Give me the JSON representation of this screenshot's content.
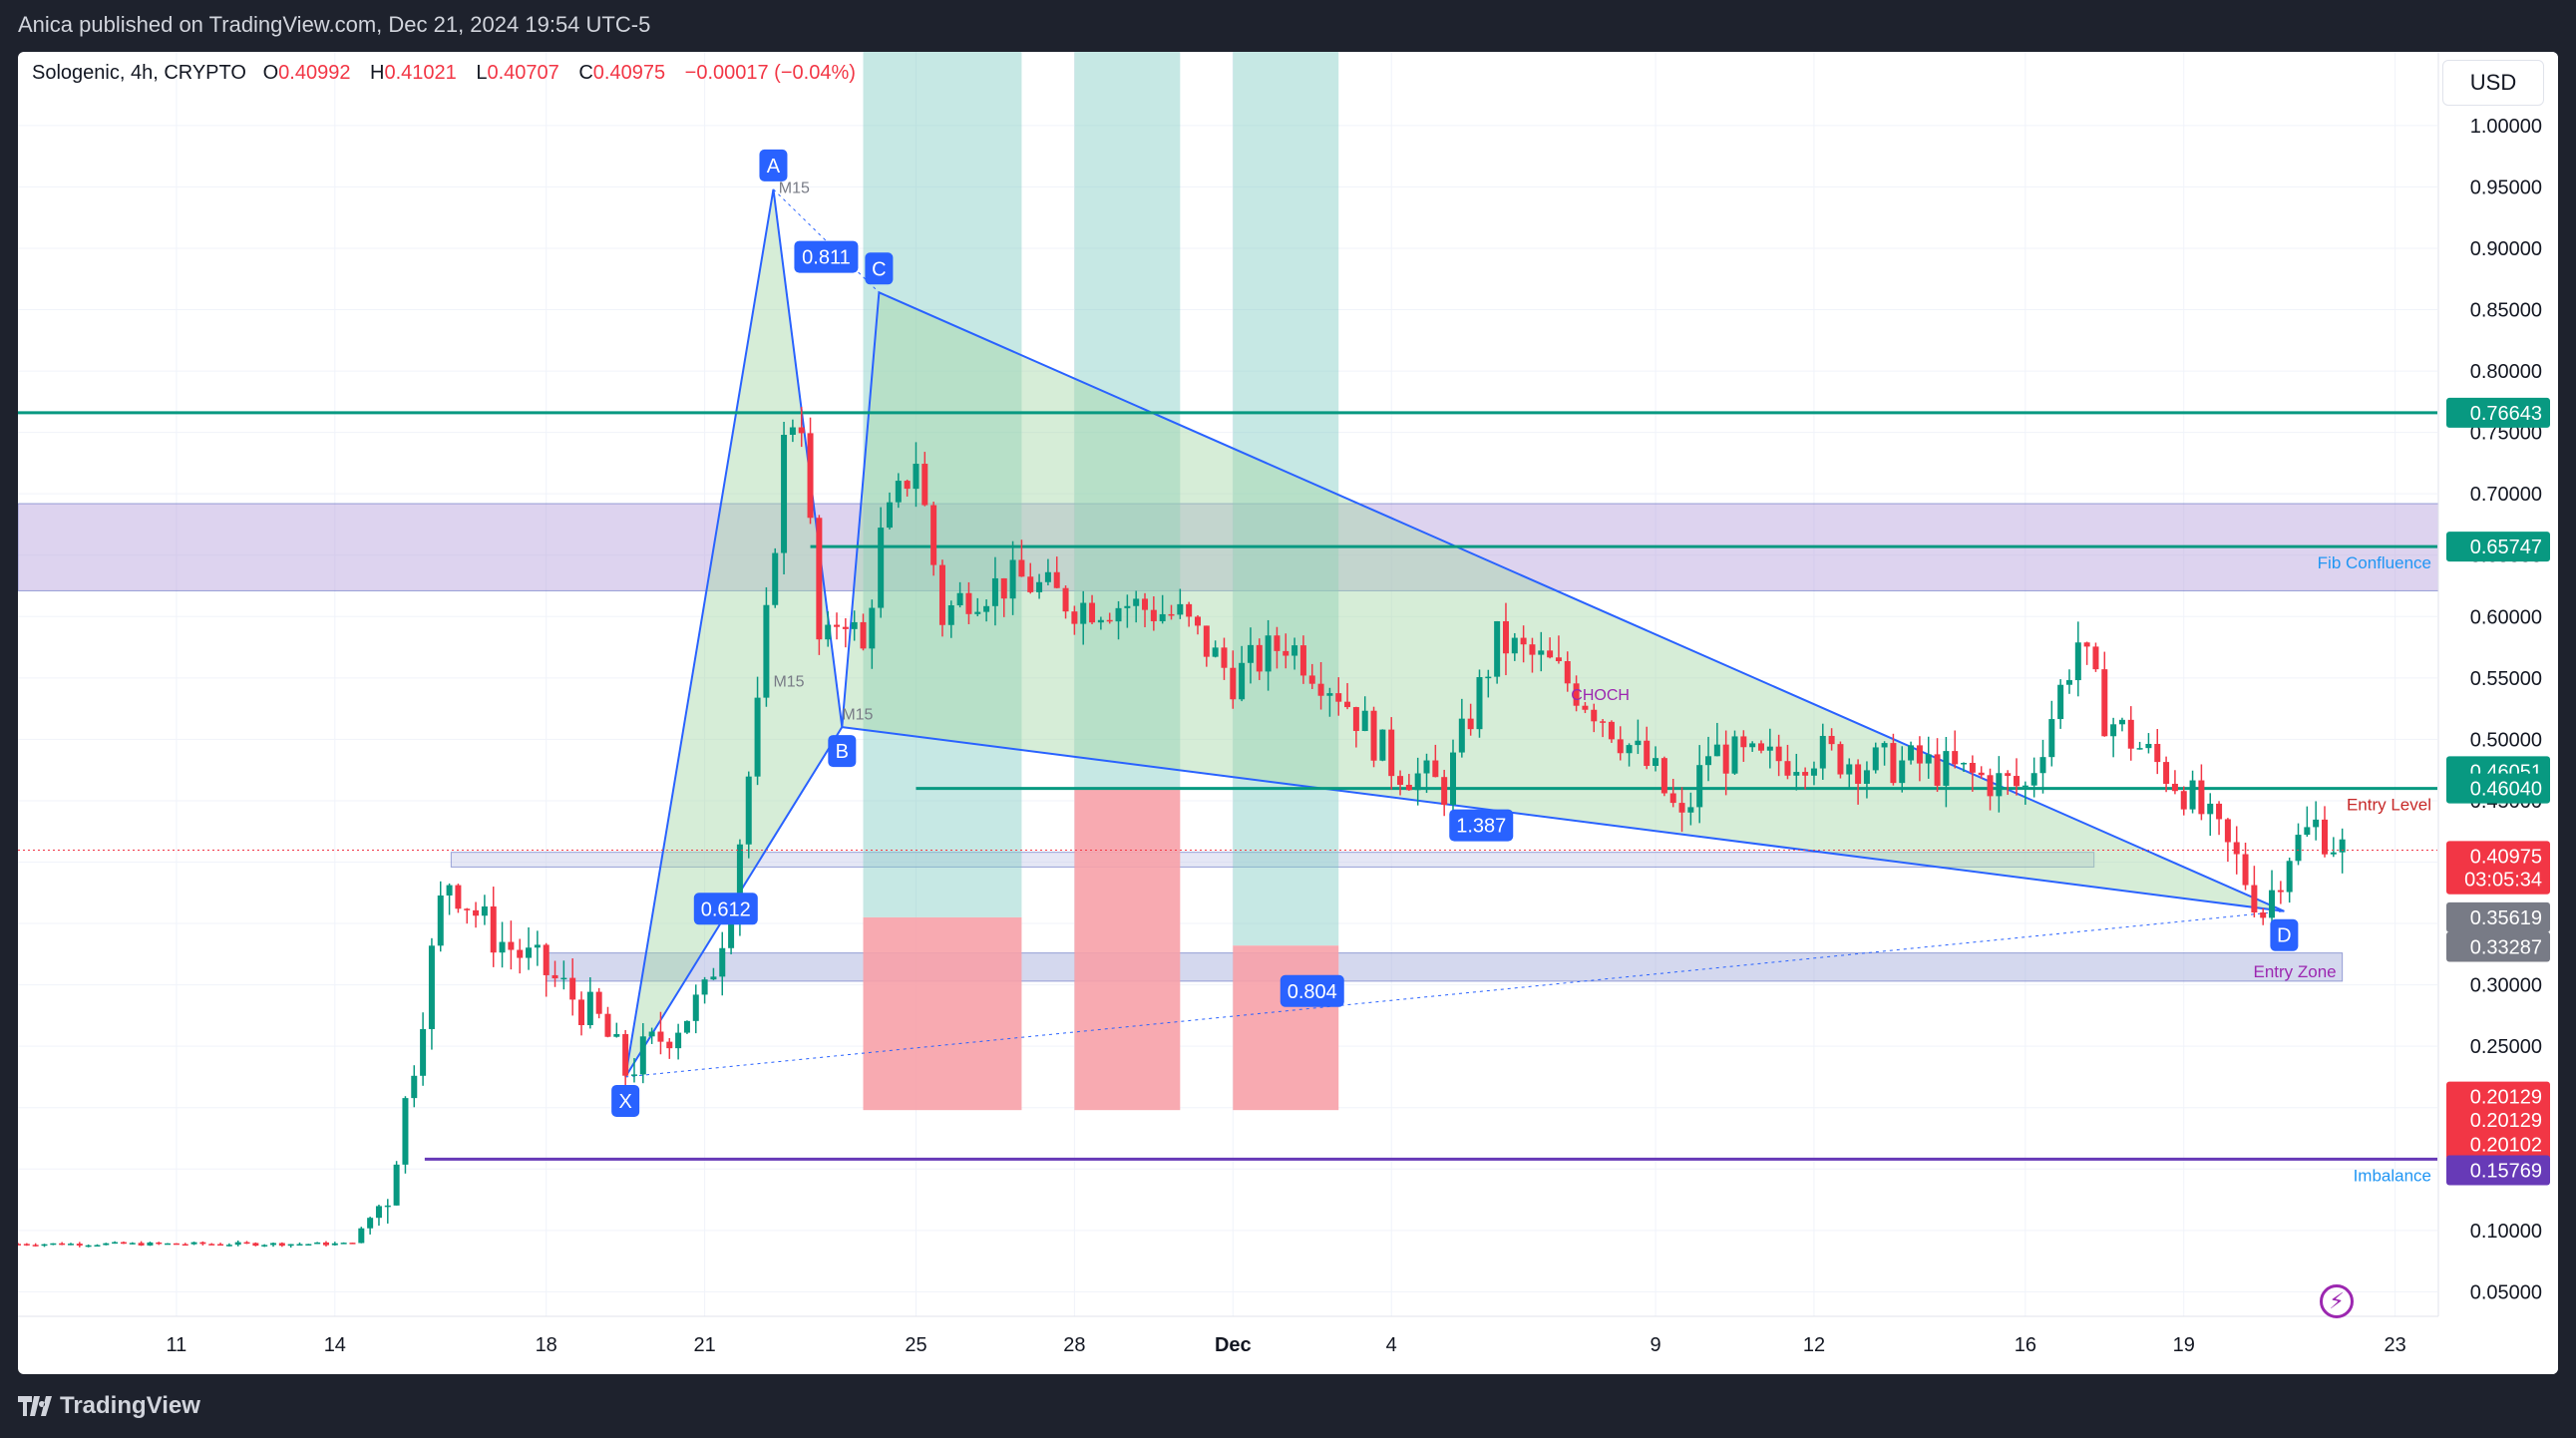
{
  "header": {
    "published": "Anica published on TradingView.com, Dec 21, 2024 19:54 UTC-5"
  },
  "legend": {
    "symbol": "Sologenic, 4h, CRYPTO",
    "open_label": "O",
    "open": "0.40992",
    "high_label": "H",
    "high": "0.41021",
    "low_label": "L",
    "low": "0.40707",
    "close_label": "C",
    "close": "0.40975",
    "change": "−0.00017 (−0.04%)"
  },
  "currency": "USD",
  "footer": {
    "brand": "TradingView"
  },
  "colors": {
    "bull": "#089981",
    "bear": "#f23645",
    "pattern_line": "#2962ff",
    "pattern_fill": "#a5d6a7",
    "level": "#089981",
    "zone": "#b39ddb",
    "imbalance": "#673ab7",
    "target": "#80cbc4",
    "stop": "#f7a1a8"
  },
  "chart_data": {
    "type": "candlestick",
    "title": "Sologenic, 4h, CRYPTO",
    "xlabel": "",
    "ylabel": "USD",
    "ylim": [
      0.03,
      1.06
    ],
    "y_ticks": [
      "1.00000",
      "0.95000",
      "0.90000",
      "0.85000",
      "0.80000",
      "0.75000",
      "0.70000",
      "0.65000",
      "0.60000",
      "0.55000",
      "0.50000",
      "0.45000",
      "0.40000",
      "0.35000",
      "0.30000",
      "0.25000",
      "0.20000",
      "0.15000",
      "0.10000",
      "0.05000"
    ],
    "x_ticks": [
      {
        "label": "11",
        "day": 11
      },
      {
        "label": "14",
        "day": 14
      },
      {
        "label": "18",
        "day": 18
      },
      {
        "label": "21",
        "day": 21
      },
      {
        "label": "25",
        "day": 25
      },
      {
        "label": "28",
        "day": 28
      },
      {
        "label": "Dec",
        "day": 31
      },
      {
        "label": "4",
        "day": 34
      },
      {
        "label": "9",
        "day": 39
      },
      {
        "label": "12",
        "day": 42
      },
      {
        "label": "16",
        "day": 46
      },
      {
        "label": "19",
        "day": 49
      },
      {
        "label": "23",
        "day": 53
      }
    ],
    "price_path": [
      [
        8,
        0.089
      ],
      [
        14.3,
        0.089
      ],
      [
        15,
        0.13
      ],
      [
        15.5,
        0.24
      ],
      [
        16.1,
        0.39
      ],
      [
        17,
        0.34
      ],
      [
        18,
        0.31
      ],
      [
        19,
        0.27
      ],
      [
        19.5,
        0.23
      ],
      [
        20,
        0.25
      ],
      [
        21,
        0.29
      ],
      [
        21.5,
        0.37
      ],
      [
        22,
        0.52
      ],
      [
        22.5,
        0.74
      ],
      [
        22.8,
        0.78
      ],
      [
        23.2,
        0.56
      ],
      [
        23.6,
        0.61
      ],
      [
        24,
        0.57
      ],
      [
        24.3,
        0.66
      ],
      [
        25,
        0.73
      ],
      [
        25.5,
        0.6
      ],
      [
        26,
        0.62
      ],
      [
        27,
        0.63
      ],
      [
        28,
        0.61
      ],
      [
        29,
        0.61
      ],
      [
        30,
        0.6
      ],
      [
        31,
        0.55
      ],
      [
        32,
        0.58
      ],
      [
        33,
        0.54
      ],
      [
        34,
        0.48
      ],
      [
        35,
        0.46
      ],
      [
        36,
        0.58
      ],
      [
        37,
        0.56
      ],
      [
        38,
        0.52
      ],
      [
        39,
        0.47
      ],
      [
        39.5,
        0.43
      ],
      [
        40,
        0.49
      ],
      [
        41,
        0.48
      ],
      [
        42,
        0.49
      ],
      [
        43,
        0.48
      ],
      [
        44,
        0.48
      ],
      [
        45,
        0.47
      ],
      [
        46,
        0.46
      ],
      [
        46.5,
        0.52
      ],
      [
        47,
        0.58
      ],
      [
        47.5,
        0.52
      ],
      [
        48,
        0.5
      ],
      [
        49,
        0.46
      ],
      [
        49.5,
        0.43
      ],
      [
        50,
        0.4
      ],
      [
        50.5,
        0.36
      ],
      [
        51,
        0.41
      ],
      [
        51.5,
        0.43
      ],
      [
        52,
        0.41
      ]
    ],
    "harmonic_pattern": {
      "points": [
        {
          "label": "X",
          "day": 19.5,
          "price": 0.225
        },
        {
          "label": "A",
          "day": 22.3,
          "price": 0.948
        },
        {
          "label": "B",
          "day": 23.6,
          "price": 0.51
        },
        {
          "label": "C",
          "day": 24.3,
          "price": 0.864
        },
        {
          "label": "D",
          "day": 50.9,
          "price": 0.36
        }
      ],
      "ratios": [
        {
          "label": "0.811",
          "day": 23.3,
          "price": 0.893
        },
        {
          "label": "1.387",
          "day": 35.7,
          "price": 0.43
        },
        {
          "label": "0.804",
          "day": 32.5,
          "price": 0.295
        },
        {
          "label": "0.612",
          "day": 21.4,
          "price": 0.362
        }
      ],
      "markers": [
        {
          "label": "M15",
          "day": 22.4,
          "price": 0.945
        },
        {
          "label": "M15",
          "day": 22.3,
          "price": 0.543
        },
        {
          "label": "M15",
          "day": 23.6,
          "price": 0.516
        },
        {
          "label": "CHOCH",
          "day": 37.4,
          "price": 0.532
        }
      ]
    },
    "horizontal_levels": [
      {
        "label": "",
        "price": 0.766,
        "axis_label": "0.76643",
        "color": "#089981",
        "x_from": 8
      },
      {
        "label": "Fib Confluence",
        "price": 0.657,
        "axis_label": "0.65747",
        "color": "#089981",
        "x_from": 23
      },
      {
        "label": "Entry Level",
        "price": 0.46,
        "axis_label": "0.46040",
        "color": "#089981",
        "x_from": 25
      },
      {
        "label": "Imbalance",
        "price": 0.158,
        "axis_label": "0.15769",
        "color": "#673ab7",
        "x_from": 15.7
      }
    ],
    "axis_labels": [
      {
        "value": "0.76643",
        "price": 0.766,
        "color": "#089981"
      },
      {
        "value": "0.65747",
        "price": 0.657,
        "color": "#089981"
      },
      {
        "value": "0.46051",
        "price": 0.474,
        "color": "#089981"
      },
      {
        "value": "0.46040",
        "price": 0.46,
        "color": "#089981"
      },
      {
        "value": "0.40975",
        "price": 0.405,
        "color": "#f23645"
      },
      {
        "value": "03:05:34",
        "price": 0.386,
        "color": "#f23645"
      },
      {
        "value": "0.35619",
        "price": 0.355,
        "color": "#787b86"
      },
      {
        "value": "0.33287",
        "price": 0.331,
        "color": "#787b86"
      },
      {
        "value": "0.20129",
        "price": 0.209,
        "color": "#f23645"
      },
      {
        "value": "0.20129",
        "price": 0.19,
        "color": "#f23645"
      },
      {
        "value": "0.20102",
        "price": 0.17,
        "color": "#f23645"
      },
      {
        "value": "0.15769",
        "price": 0.149,
        "color": "#673ab7"
      }
    ],
    "zones": [
      {
        "label": "",
        "top": 0.692,
        "bottom": 0.621,
        "day_from": 8,
        "day_to": 54,
        "color": "#b39ddb"
      },
      {
        "label": "Entry Zone",
        "top": 0.326,
        "bottom": 0.303,
        "day_from": 18,
        "day_to": 52,
        "color": "#9fa8da"
      },
      {
        "label": "",
        "top": 0.408,
        "bottom": 0.396,
        "day_from": 16.2,
        "day_to": 47.3,
        "color": "#c5cae9"
      }
    ],
    "positions": [
      {
        "day_from": 24,
        "day_to": 27,
        "entry": 0.355,
        "target": 1.06,
        "stop": 0.198
      },
      {
        "day_from": 28,
        "day_to": 30,
        "entry": 0.459,
        "target": 1.06,
        "stop": 0.198
      },
      {
        "day_from": 31,
        "day_to": 33,
        "entry": 0.332,
        "target": 1.06,
        "stop": 0.198
      }
    ],
    "last_price": 0.40975,
    "countdown": "03:05:34"
  }
}
